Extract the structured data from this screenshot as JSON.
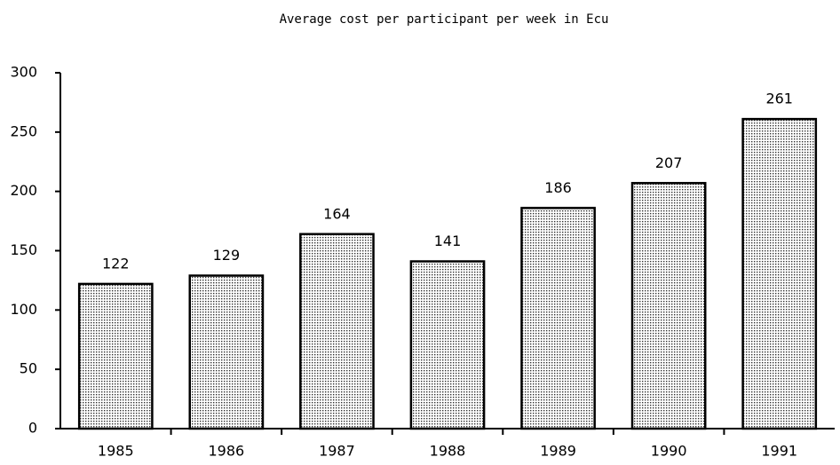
{
  "chart_data": {
    "type": "bar",
    "title": "Average cost per participant per week in Ecu",
    "categories": [
      "1985",
      "1986",
      "1987",
      "1988",
      "1989",
      "1990",
      "1991"
    ],
    "values": [
      122,
      129,
      164,
      141,
      186,
      207,
      261
    ],
    "color": "#b8b8b8",
    "ylim": [
      0,
      300
    ],
    "yticks": [
      0,
      50,
      100,
      150,
      200,
      250,
      300
    ],
    "grid": false
  }
}
